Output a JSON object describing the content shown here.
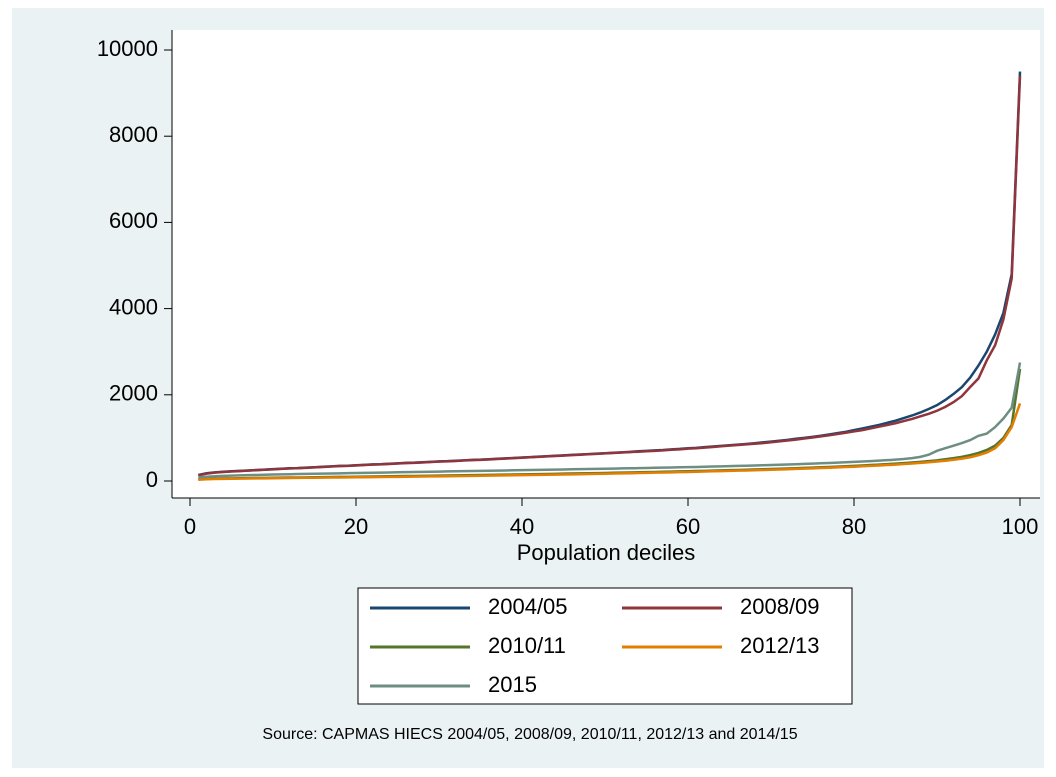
{
  "chart_data": {
    "type": "line",
    "xlabel": "Population deciles",
    "note": "Source: CAPMAS HIECS 2004/05, 2008/09, 2010/11, 2012/13 and 2014/15",
    "xlim": [
      0,
      100
    ],
    "xticks": [
      0,
      20,
      40,
      60,
      80,
      100
    ],
    "ylim": [
      0,
      10000
    ],
    "yticks": [
      0,
      2000,
      4000,
      6000,
      8000,
      10000
    ],
    "grid": false,
    "legend": "bottom",
    "x": [
      1,
      2,
      3,
      4,
      5,
      6,
      7,
      8,
      9,
      10,
      11,
      12,
      13,
      14,
      15,
      16,
      17,
      18,
      19,
      20,
      21,
      22,
      23,
      24,
      25,
      26,
      27,
      28,
      29,
      30,
      31,
      32,
      33,
      34,
      35,
      36,
      37,
      38,
      39,
      40,
      41,
      42,
      43,
      44,
      45,
      46,
      47,
      48,
      49,
      50,
      51,
      52,
      53,
      54,
      55,
      56,
      57,
      58,
      59,
      60,
      61,
      62,
      63,
      64,
      65,
      66,
      67,
      68,
      69,
      70,
      71,
      72,
      73,
      74,
      75,
      76,
      77,
      78,
      79,
      80,
      81,
      82,
      83,
      84,
      85,
      86,
      87,
      88,
      89,
      90,
      91,
      92,
      93,
      94,
      95,
      96,
      97,
      98,
      99,
      100
    ],
    "series": [
      {
        "name": "2004/05",
        "color": "#1a476f",
        "values": [
          140,
          180,
          200,
          215,
          225,
          235,
          245,
          255,
          265,
          275,
          285,
          295,
          300,
          310,
          320,
          330,
          340,
          350,
          355,
          365,
          375,
          385,
          390,
          400,
          410,
          420,
          425,
          435,
          445,
          455,
          460,
          470,
          480,
          490,
          495,
          505,
          515,
          525,
          535,
          545,
          555,
          565,
          575,
          585,
          595,
          605,
          615,
          625,
          635,
          645,
          655,
          665,
          675,
          690,
          700,
          710,
          720,
          735,
          745,
          760,
          770,
          785,
          800,
          815,
          830,
          845,
          860,
          875,
          895,
          915,
          935,
          955,
          980,
          1000,
          1025,
          1050,
          1080,
          1110,
          1140,
          1180,
          1220,
          1260,
          1300,
          1350,
          1400,
          1460,
          1520,
          1590,
          1670,
          1760,
          1880,
          2020,
          2180,
          2400,
          2680,
          3000,
          3400,
          3900,
          4800,
          9500
        ]
      },
      {
        "name": "2008/09",
        "color": "#90353b",
        "values": [
          130,
          170,
          195,
          210,
          220,
          230,
          240,
          250,
          260,
          270,
          280,
          290,
          300,
          305,
          315,
          325,
          335,
          345,
          350,
          360,
          370,
          380,
          385,
          395,
          405,
          415,
          420,
          430,
          440,
          450,
          455,
          465,
          475,
          485,
          490,
          500,
          510,
          520,
          530,
          540,
          550,
          560,
          570,
          580,
          590,
          600,
          610,
          620,
          630,
          640,
          650,
          660,
          670,
          680,
          690,
          700,
          710,
          725,
          735,
          750,
          760,
          775,
          790,
          805,
          820,
          835,
          850,
          865,
          880,
          900,
          920,
          940,
          960,
          985,
          1010,
          1035,
          1060,
          1090,
          1120,
          1150,
          1180,
          1220,
          1260,
          1300,
          1340,
          1390,
          1440,
          1500,
          1560,
          1630,
          1720,
          1830,
          1970,
          2180,
          2380,
          2800,
          3150,
          3750,
          4700,
          9400
        ]
      },
      {
        "name": "2010/11",
        "color": "#55752f",
        "values": [
          40,
          50,
          55,
          60,
          62,
          65,
          68,
          70,
          72,
          75,
          78,
          80,
          82,
          85,
          87,
          90,
          92,
          95,
          97,
          100,
          102,
          105,
          107,
          110,
          112,
          115,
          117,
          120,
          122,
          125,
          128,
          130,
          133,
          136,
          139,
          142,
          145,
          148,
          151,
          154,
          157,
          160,
          163,
          166,
          170,
          173,
          176,
          180,
          183,
          187,
          190,
          194,
          198,
          202,
          206,
          210,
          214,
          218,
          222,
          227,
          231,
          236,
          241,
          246,
          251,
          256,
          261,
          267,
          273,
          279,
          285,
          291,
          297,
          304,
          311,
          318,
          325,
          333,
          341,
          350,
          360,
          370,
          380,
          391,
          403,
          416,
          430,
          445,
          462,
          480,
          505,
          530,
          560,
          600,
          650,
          720,
          820,
          1000,
          1300,
          2600
        ]
      },
      {
        "name": "2012/13",
        "color": "#e37e00",
        "values": [
          30,
          40,
          45,
          50,
          52,
          55,
          58,
          60,
          62,
          65,
          68,
          70,
          72,
          74,
          76,
          78,
          80,
          82,
          84,
          86,
          88,
          90,
          92,
          95,
          97,
          100,
          102,
          104,
          106,
          108,
          110,
          113,
          116,
          119,
          122,
          125,
          128,
          131,
          134,
          137,
          140,
          143,
          146,
          149,
          152,
          155,
          158,
          161,
          165,
          169,
          173,
          177,
          181,
          185,
          189,
          193,
          197,
          201,
          205,
          210,
          215,
          220,
          225,
          230,
          235,
          240,
          245,
          250,
          256,
          262,
          268,
          274,
          280,
          287,
          294,
          301,
          308,
          316,
          324,
          332,
          341,
          350,
          360,
          370,
          381,
          393,
          406,
          420,
          435,
          452,
          470,
          492,
          518,
          550,
          600,
          660,
          760,
          950,
          1250,
          1800
        ]
      },
      {
        "name": "2015",
        "color": "#6e8e84",
        "values": [
          80,
          100,
          110,
          120,
          125,
          130,
          135,
          140,
          145,
          150,
          155,
          158,
          162,
          165,
          168,
          172,
          175,
          178,
          182,
          185,
          188,
          192,
          195,
          198,
          202,
          205,
          208,
          212,
          215,
          218,
          222,
          225,
          228,
          232,
          235,
          238,
          242,
          245,
          248,
          252,
          255,
          258,
          262,
          265,
          268,
          272,
          275,
          278,
          282,
          285,
          288,
          292,
          295,
          298,
          302,
          306,
          310,
          314,
          318,
          322,
          326,
          330,
          335,
          340,
          345,
          350,
          355,
          360,
          366,
          372,
          378,
          384,
          390,
          397,
          404,
          411,
          418,
          426,
          434,
          443,
          452,
          462,
          472,
          483,
          495,
          510,
          530,
          560,
          610,
          700,
          760,
          820,
          880,
          950,
          1050,
          1100,
          1250,
          1450,
          1700,
          2750
        ]
      }
    ]
  }
}
